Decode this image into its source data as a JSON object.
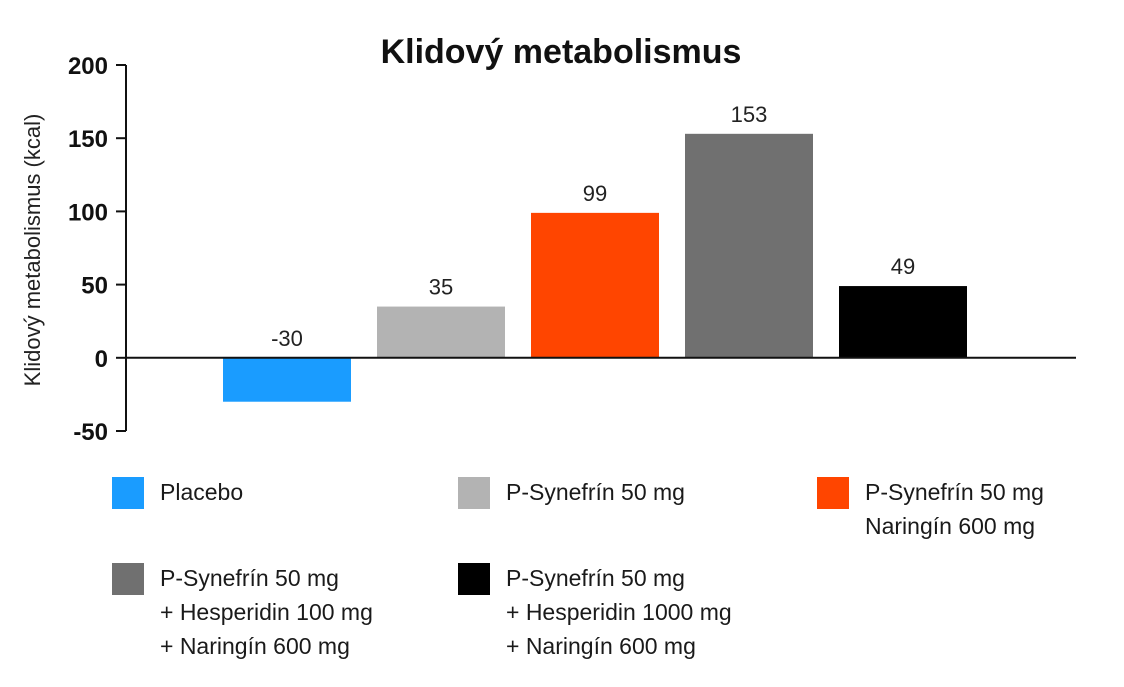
{
  "chart_data": {
    "type": "bar",
    "title": "Klidový metabolismus",
    "ylabel": "Klidový metabolismus (kcal)",
    "xlabel": "",
    "ylim": [
      -50,
      200
    ],
    "yticks": [
      200,
      150,
      100,
      50,
      0,
      -50
    ],
    "yticklabels": [
      "200",
      "150",
      "100",
      "50",
      "0",
      "-50"
    ],
    "grid": false,
    "legend_position": "bottom",
    "categories": [
      [
        "Placebo"
      ],
      [
        "P-Synefrín 50 mg"
      ],
      [
        "P-Synefrín 50 mg",
        "Naringín 600 mg"
      ],
      [
        "P-Synefrín 50 mg",
        "+ Hesperidin 100 mg",
        "+ Naringín 600 mg"
      ],
      [
        "P-Synefrín 50 mg",
        "+ Hesperidin 1000 mg",
        "+ Naringín 600 mg"
      ]
    ],
    "values": [
      -30,
      35,
      99,
      153,
      49
    ],
    "value_labels": [
      "-30",
      "35",
      "99",
      "153",
      "49"
    ],
    "colors": [
      "#1a9cff",
      "#b3b3b3",
      "#ff4500",
      "#707070",
      "#000000"
    ]
  }
}
